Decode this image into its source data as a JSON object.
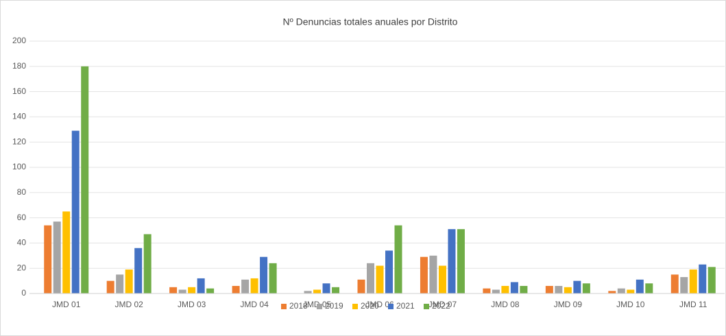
{
  "chart_data": {
    "type": "bar",
    "title": "Nº Denuncias totales anuales por  Distrito",
    "categories": [
      "JMD 01",
      "JMD 02",
      "JMD 03",
      "JMD 04",
      "JMD 05",
      "JMD 06",
      "JMD 07",
      "JMD 08",
      "JMD 09",
      "JMD 10",
      "JMD 11"
    ],
    "series": [
      {
        "name": "2018",
        "color": "#ed7d31",
        "values": [
          54,
          10,
          5,
          6,
          0,
          11,
          29,
          4,
          6,
          2,
          15
        ]
      },
      {
        "name": "2019",
        "color": "#a5a5a5",
        "values": [
          57,
          15,
          3,
          11,
          2,
          24,
          30,
          3,
          6,
          4,
          13
        ]
      },
      {
        "name": "2020",
        "color": "#ffc000",
        "values": [
          65,
          19,
          5,
          12,
          3,
          22,
          22,
          6,
          5,
          3,
          19
        ]
      },
      {
        "name": "2021",
        "color": "#4472c4",
        "values": [
          129,
          36,
          12,
          29,
          8,
          34,
          51,
          9,
          10,
          11,
          23
        ]
      },
      {
        "name": "2022",
        "color": "#70ad47",
        "values": [
          180,
          47,
          4,
          24,
          5,
          54,
          51,
          6,
          8,
          8,
          21
        ]
      }
    ],
    "ylim": [
      0,
      200
    ],
    "yticks": [
      0,
      20,
      40,
      60,
      80,
      100,
      120,
      140,
      160,
      180,
      200
    ],
    "grid": true,
    "legend": "bottom"
  }
}
